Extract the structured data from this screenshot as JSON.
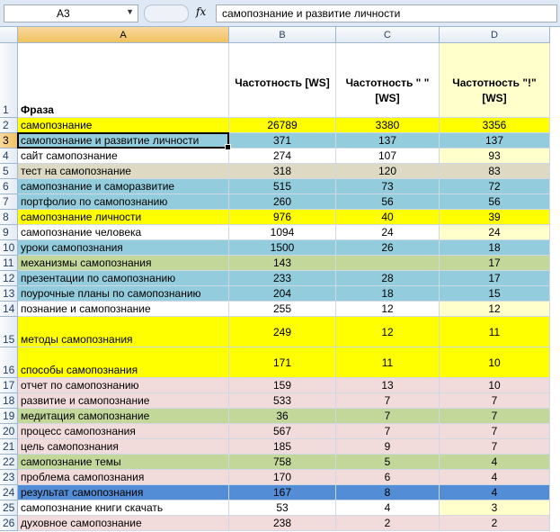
{
  "formula_bar": {
    "name_box": "A3",
    "fx_label": "fx",
    "formula": "самопознание и развитие личности"
  },
  "columns": [
    "A",
    "B",
    "C",
    "D"
  ],
  "selected_column": "A",
  "headers": {
    "row_number": "1",
    "a": "Фраза",
    "b": "Частотность [WS]",
    "c": "Частотность \" \" [WS]",
    "d": "Частотность \"!\" [WS]"
  },
  "rows": [
    {
      "n": "2",
      "phrase": "самопознание",
      "b": "26789",
      "c": "3380",
      "d": "3356",
      "color": "#ffff00"
    },
    {
      "n": "3",
      "phrase": "самопознание и развитие личности",
      "b": "371",
      "c": "137",
      "d": "137",
      "color": "#93cddd"
    },
    {
      "n": "4",
      "phrase": "сайт самопознание",
      "b": "274",
      "c": "107",
      "d": "93",
      "color": "#ffffff"
    },
    {
      "n": "5",
      "phrase": "тест на самопознание",
      "b": "318",
      "c": "120",
      "d": "83",
      "color": "#ddd9c3"
    },
    {
      "n": "6",
      "phrase": "самопознание и саморазвитие",
      "b": "515",
      "c": "73",
      "d": "72",
      "color": "#93cddd"
    },
    {
      "n": "7",
      "phrase": "портфолио по самопознанию",
      "b": "260",
      "c": "56",
      "d": "56",
      "color": "#93cddd"
    },
    {
      "n": "8",
      "phrase": "самопознание личности",
      "b": "976",
      "c": "40",
      "d": "39",
      "color": "#ffff00"
    },
    {
      "n": "9",
      "phrase": "самопознание человека",
      "b": "1094",
      "c": "24",
      "d": "24",
      "color": "#ffffff"
    },
    {
      "n": "10",
      "phrase": "уроки самопознания",
      "b": "1500",
      "c": "26",
      "d": "18",
      "color": "#93cddd"
    },
    {
      "n": "11",
      "phrase": "механизмы самопознания",
      "b": "143",
      "c": "",
      "d": "17",
      "color": "#c4d79b"
    },
    {
      "n": "12",
      "phrase": "презентации по самопознанию",
      "b": "233",
      "c": "28",
      "d": "17",
      "color": "#93cddd"
    },
    {
      "n": "13",
      "phrase": "поурочные планы по самопознанию",
      "b": "204",
      "c": "18",
      "d": "15",
      "color": "#93cddd"
    },
    {
      "n": "14",
      "phrase": "познание и самопознание",
      "b": "255",
      "c": "12",
      "d": "12",
      "color": "#ffffff"
    },
    {
      "n": "15",
      "phrase": "методы самопознания",
      "b": "249",
      "c": "12",
      "d": "11",
      "color": "#ffff00"
    },
    {
      "n": "16",
      "phrase": "способы самопознания",
      "b": "171",
      "c": "11",
      "d": "10",
      "color": "#ffff00"
    },
    {
      "n": "17",
      "phrase": "отчет по самопознанию",
      "b": "159",
      "c": "13",
      "d": "10",
      "color": "#f2dcdb"
    },
    {
      "n": "18",
      "phrase": "развитие и самопознание",
      "b": "533",
      "c": "7",
      "d": "7",
      "color": "#f2dcdb"
    },
    {
      "n": "19",
      "phrase": "медитация самопознание",
      "b": "36",
      "c": "7",
      "d": "7",
      "color": "#c4d79b"
    },
    {
      "n": "20",
      "phrase": "процесс самопознания",
      "b": "567",
      "c": "7",
      "d": "7",
      "color": "#f2dcdb"
    },
    {
      "n": "21",
      "phrase": "цель самопознания",
      "b": "185",
      "c": "9",
      "d": "7",
      "color": "#f2dcdb"
    },
    {
      "n": "22",
      "phrase": "самопознание темы",
      "b": "758",
      "c": "5",
      "d": "4",
      "color": "#c4d79b"
    },
    {
      "n": "23",
      "phrase": "проблема самопознания",
      "b": "170",
      "c": "6",
      "d": "4",
      "color": "#f2dcdb"
    },
    {
      "n": "24",
      "phrase": "результат самопознания",
      "b": "167",
      "c": "8",
      "d": "4",
      "color": "#538dd5"
    },
    {
      "n": "25",
      "phrase": "самопознание книги скачать",
      "b": "53",
      "c": "4",
      "d": "3",
      "color": "#ffffff"
    },
    {
      "n": "26",
      "phrase": "духовное самопознание",
      "b": "238",
      "c": "2",
      "d": "2",
      "color": "#f2dcdb"
    }
  ],
  "colors": {
    "d_column_bg": "#ffffcc",
    "selected_header": "#f9d99f"
  }
}
